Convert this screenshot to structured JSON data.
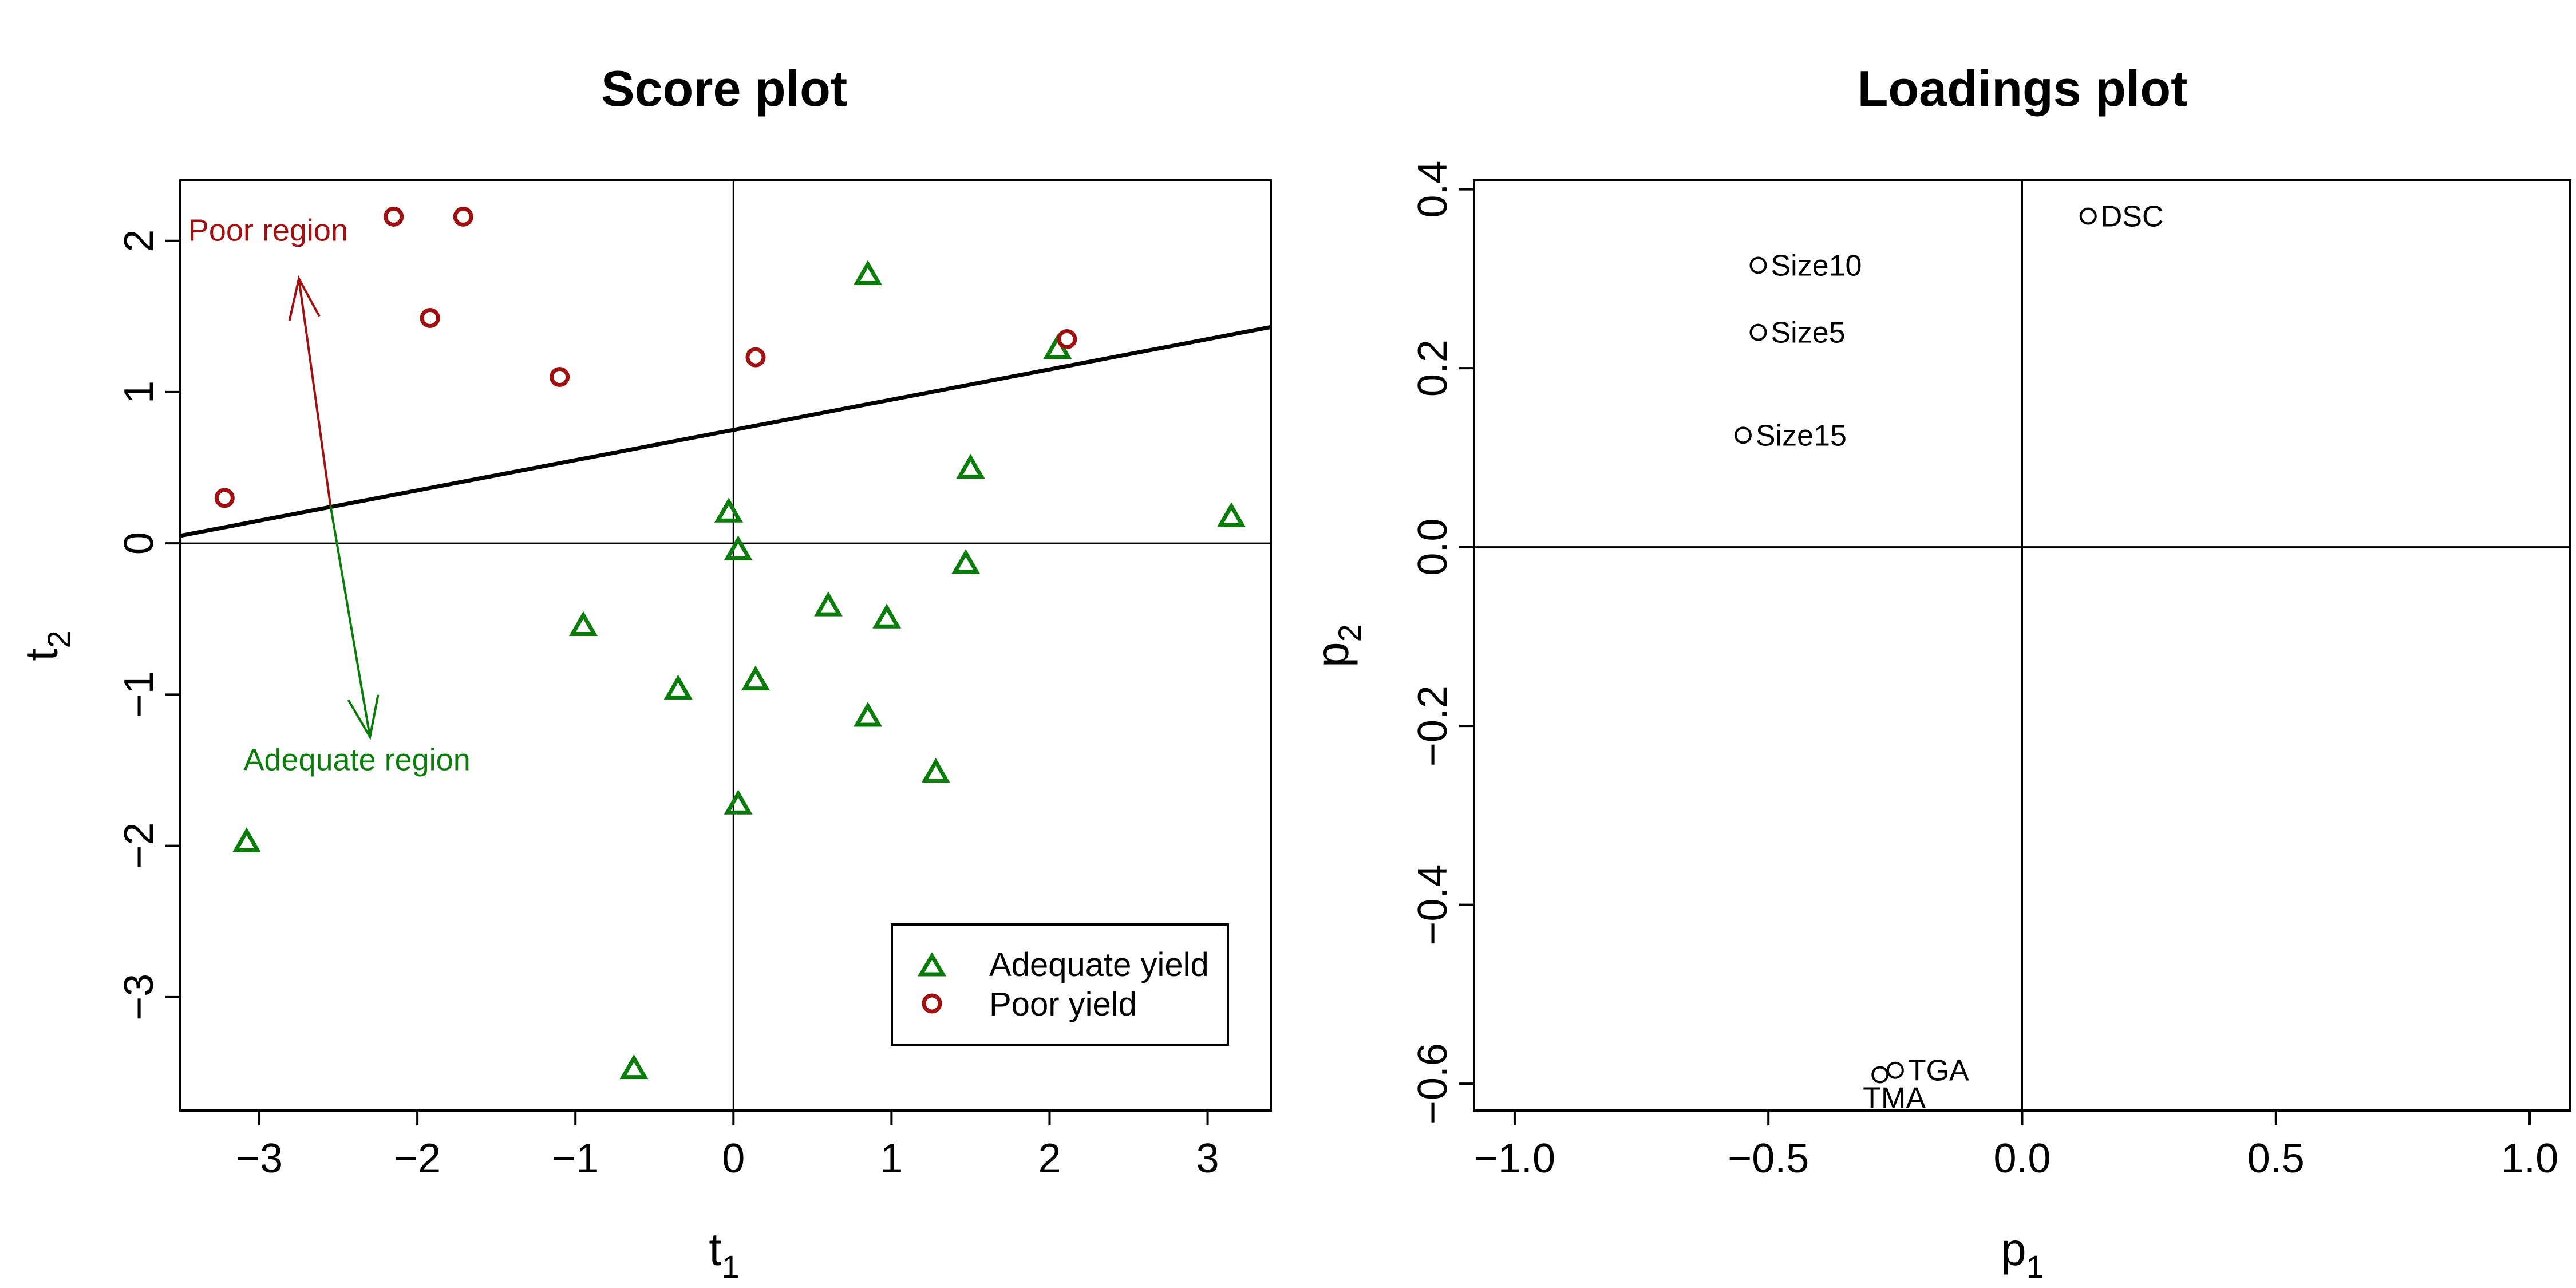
{
  "colors": {
    "adequate": "#0b7d0b",
    "poor": "#a01010",
    "axis": "#000000"
  },
  "chart_data": [
    {
      "type": "scatter",
      "title": "Score plot",
      "xlabel": "t",
      "xlabel_sub": "1",
      "ylabel": "t",
      "ylabel_sub": "2",
      "xlim": [
        -3.5,
        3.4
      ],
      "ylim": [
        -3.75,
        2.4
      ],
      "xticks": [
        -3,
        -2,
        -1,
        0,
        1,
        2,
        3
      ],
      "xtick_labels": [
        "−3",
        "−2",
        "−1",
        "0",
        "1",
        "2",
        "3"
      ],
      "yticks": [
        -3,
        -2,
        -1,
        0,
        1,
        2
      ],
      "ytick_labels": [
        "−3",
        "−2",
        "−1",
        "0",
        "1",
        "2"
      ],
      "reference_lines": {
        "x": 0,
        "y": 0
      },
      "separator_line": {
        "intercept": 0.75,
        "slope": 0.2
      },
      "series": [
        {
          "name": "Adequate yield",
          "marker": "triangle",
          "color": "#0b7d0b",
          "points": [
            [
              -3.08,
              -1.98
            ],
            [
              -0.95,
              -0.55
            ],
            [
              -0.35,
              -0.97
            ],
            [
              -0.03,
              0.2
            ],
            [
              0.03,
              -0.05
            ],
            [
              0.03,
              -1.73
            ],
            [
              0.14,
              -0.91
            ],
            [
              0.6,
              -0.42
            ],
            [
              0.85,
              -1.15
            ],
            [
              0.85,
              1.77
            ],
            [
              0.97,
              -0.5
            ],
            [
              1.28,
              -1.52
            ],
            [
              1.47,
              -0.14
            ],
            [
              1.5,
              0.49
            ],
            [
              2.05,
              1.28
            ],
            [
              3.15,
              0.17
            ],
            [
              -0.63,
              -3.48
            ]
          ]
        },
        {
          "name": "Poor yield",
          "marker": "circle",
          "color": "#a01010",
          "points": [
            [
              -3.22,
              0.3
            ],
            [
              -2.15,
              2.16
            ],
            [
              -1.92,
              1.49
            ],
            [
              -1.71,
              2.16
            ],
            [
              -1.1,
              1.1
            ],
            [
              0.14,
              1.23
            ],
            [
              2.11,
              1.35
            ]
          ]
        }
      ],
      "annotations": [
        {
          "text": "Poor region",
          "x": -3.45,
          "y": 2.0,
          "color": "#a01010"
        },
        {
          "text": "Adequate region",
          "x": -3.1,
          "y": -1.5,
          "color": "#0b7d0b"
        }
      ],
      "arrows": [
        {
          "from": [
            -2.55,
            0.25
          ],
          "to": [
            -2.75,
            1.75
          ],
          "color": "#a01010"
        },
        {
          "from": [
            -2.55,
            0.25
          ],
          "to": [
            -2.3,
            -1.28
          ],
          "color": "#0b7d0b"
        }
      ],
      "legend": {
        "position": "bottom-right",
        "items": [
          {
            "label": "Adequate yield",
            "marker": "triangle",
            "color": "#0b7d0b"
          },
          {
            "label": "Poor yield",
            "marker": "circle",
            "color": "#a01010"
          }
        ]
      }
    },
    {
      "type": "scatter",
      "title": "Loadings plot",
      "xlabel": "p",
      "xlabel_sub": "1",
      "ylabel": "p",
      "ylabel_sub": "2",
      "xlim": [
        -1.08,
        1.08
      ],
      "ylim": [
        -0.63,
        0.41
      ],
      "xticks": [
        -1.0,
        -0.5,
        0.0,
        0.5,
        1.0
      ],
      "xtick_labels": [
        "−1.0",
        "−0.5",
        "0.0",
        "0.5",
        "1.0"
      ],
      "yticks": [
        -0.6,
        -0.4,
        -0.2,
        0.0,
        0.2,
        0.4
      ],
      "ytick_labels": [
        "−0.6",
        "−0.4",
        "−0.2",
        "0.0",
        "0.2",
        "0.4"
      ],
      "reference_lines": {
        "x": 0,
        "y": 0
      },
      "points": [
        {
          "label": "DSC",
          "x": 0.13,
          "y": 0.37,
          "label_side": "right"
        },
        {
          "label": "Size10",
          "x": -0.52,
          "y": 0.315,
          "label_side": "right"
        },
        {
          "label": "Size5",
          "x": -0.52,
          "y": 0.24,
          "label_side": "right"
        },
        {
          "label": "Size15",
          "x": -0.55,
          "y": 0.125,
          "label_side": "right"
        },
        {
          "label": "TGA",
          "x": -0.25,
          "y": -0.585,
          "label_side": "right"
        },
        {
          "label": "TMA",
          "x": -0.28,
          "y": -0.59,
          "label_side": "below"
        }
      ]
    }
  ]
}
